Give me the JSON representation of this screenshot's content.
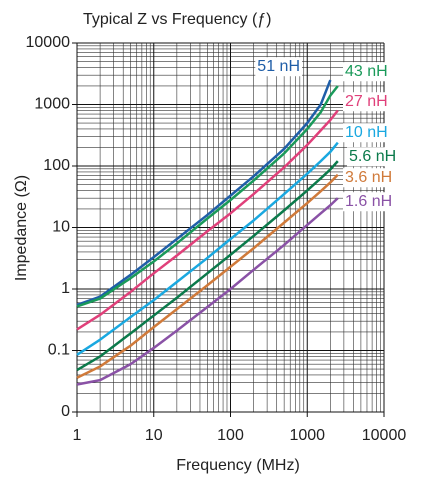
{
  "chart_data": {
    "type": "line",
    "title": "Typical Z vs Frequency (ƒ)",
    "x_label": "Frequency (MHz)",
    "y_label": "Impedance (Ω)",
    "log_x": true,
    "log_y": true,
    "grid": true,
    "xlim": [
      1,
      10000
    ],
    "ylim": [
      0.01,
      10000
    ],
    "xticks": [
      1,
      10,
      100,
      1000,
      10000
    ],
    "yticks": [
      {
        "value": 0.01,
        "label": "0"
      },
      0.1,
      1,
      10,
      100,
      1000,
      10000
    ],
    "x": [
      1,
      2,
      5,
      10,
      20,
      50,
      100,
      200,
      500,
      1000,
      1500,
      2000,
      2500
    ],
    "series": [
      {
        "name": "51 nH",
        "color": "#1f5ea8",
        "values": [
          0.55,
          0.75,
          1.7,
          3.3,
          6.5,
          16,
          33,
          68,
          190,
          500,
          1000,
          2500,
          null
        ]
      },
      {
        "name": "43 nH",
        "color": "#1a9a5a",
        "values": [
          0.52,
          0.7,
          1.5,
          2.8,
          5.5,
          14,
          28,
          58,
          160,
          400,
          750,
          1400,
          2000
        ]
      },
      {
        "name": "27 nH",
        "color": "#e0407a",
        "values": [
          0.22,
          0.38,
          0.9,
          1.8,
          3.5,
          8.7,
          17,
          35,
          95,
          220,
          380,
          560,
          800
        ]
      },
      {
        "name": "10 nH",
        "color": "#1aa8e0",
        "values": [
          0.085,
          0.15,
          0.35,
          0.66,
          1.3,
          3.2,
          6.5,
          13,
          35,
          75,
          120,
          170,
          240
        ]
      },
      {
        "name": "5.6 nH",
        "color": "#0b7a4b",
        "values": [
          0.048,
          0.08,
          0.19,
          0.37,
          0.72,
          1.8,
          3.6,
          7.3,
          19,
          40,
          63,
          88,
          120
        ]
      },
      {
        "name": "3.6 nH",
        "color": "#d07a3a",
        "values": [
          0.036,
          0.055,
          0.12,
          0.24,
          0.47,
          1.15,
          2.3,
          4.6,
          12,
          25,
          39,
          54,
          72
        ]
      },
      {
        "name": "1.6 nH",
        "color": "#8a52a6",
        "values": [
          0.028,
          0.033,
          0.06,
          0.11,
          0.21,
          0.51,
          1.0,
          2.05,
          5.2,
          11,
          17,
          23,
          30
        ]
      }
    ]
  }
}
